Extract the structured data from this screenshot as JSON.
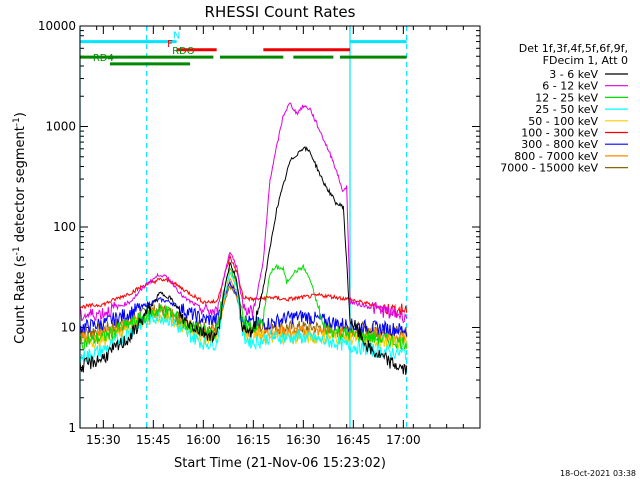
{
  "chart_data": {
    "type": "line",
    "title": "RHESSI Count Rates",
    "xlabel": "Start Time (21-Nov-06 15:23:02)",
    "ylabel_pre": "Count Rate (s",
    "ylabel_sup": "-1",
    "ylabel_mid": " detector segment",
    "ylabel_post": ")",
    "yscale": "log",
    "ylim": [
      1,
      10000
    ],
    "xlim_min": [
      23,
      143
    ],
    "x_unit": "minutes after 15:00",
    "yticks": [
      {
        "v": 1,
        "label": "1"
      },
      {
        "v": 10,
        "label": "10"
      },
      {
        "v": 100,
        "label": "100"
      },
      {
        "v": 1000,
        "label": "1000"
      },
      {
        "v": 10000,
        "label": "10000"
      }
    ],
    "xticks": [
      {
        "t": 30,
        "label": "15:30"
      },
      {
        "t": 45,
        "label": "15:45"
      },
      {
        "t": 60,
        "label": "16:00"
      },
      {
        "t": 75,
        "label": "16:15"
      },
      {
        "t": 90,
        "label": "16:30"
      },
      {
        "t": 105,
        "label": "16:45"
      },
      {
        "t": 120,
        "label": "17:00"
      }
    ],
    "legend_header": [
      "Det 1f,3f,4f,5f,6f,9f,",
      "FDecim 1, Att 0"
    ],
    "series": [
      {
        "name": "3 - 6 keV",
        "color": "#000000",
        "points": [
          [
            23,
            4
          ],
          [
            30,
            5
          ],
          [
            38,
            8
          ],
          [
            43,
            14
          ],
          [
            47,
            22
          ],
          [
            50,
            20
          ],
          [
            54,
            12
          ],
          [
            60,
            9
          ],
          [
            64,
            8
          ],
          [
            66,
            20
          ],
          [
            68,
            45
          ],
          [
            70,
            30
          ],
          [
            72,
            9
          ],
          [
            75,
            9
          ],
          [
            78,
            25
          ],
          [
            82,
            150
          ],
          [
            86,
            450
          ],
          [
            90,
            620
          ],
          [
            92,
            560
          ],
          [
            96,
            280
          ],
          [
            100,
            170
          ],
          [
            102,
            160
          ],
          [
            104,
            12
          ],
          [
            110,
            6
          ],
          [
            116,
            4.5
          ],
          [
            121,
            3.7
          ]
        ]
      },
      {
        "name": "6 - 12 keV",
        "color": "#e000e0",
        "points": [
          [
            23,
            13
          ],
          [
            30,
            14
          ],
          [
            38,
            18
          ],
          [
            43,
            27
          ],
          [
            47,
            34
          ],
          [
            50,
            30
          ],
          [
            54,
            20
          ],
          [
            60,
            15
          ],
          [
            64,
            14
          ],
          [
            66,
            30
          ],
          [
            68,
            58
          ],
          [
            70,
            40
          ],
          [
            72,
            16
          ],
          [
            75,
            14
          ],
          [
            78,
            45
          ],
          [
            80,
            300
          ],
          [
            84,
            1300
          ],
          [
            86,
            1700
          ],
          [
            88,
            1350
          ],
          [
            90,
            1600
          ],
          [
            92,
            1500
          ],
          [
            95,
            900
          ],
          [
            99,
            450
          ],
          [
            102,
            220
          ],
          [
            103,
            260
          ],
          [
            104,
            18
          ],
          [
            110,
            16
          ],
          [
            116,
            14
          ],
          [
            121,
            13
          ]
        ]
      },
      {
        "name": "12 - 25 keV",
        "color": "#00dd00",
        "points": [
          [
            23,
            7
          ],
          [
            30,
            8
          ],
          [
            38,
            11
          ],
          [
            43,
            13
          ],
          [
            47,
            15
          ],
          [
            50,
            14
          ],
          [
            54,
            11
          ],
          [
            60,
            9
          ],
          [
            64,
            9
          ],
          [
            66,
            22
          ],
          [
            68,
            40
          ],
          [
            70,
            28
          ],
          [
            72,
            11
          ],
          [
            75,
            10
          ],
          [
            78,
            12
          ],
          [
            80,
            35
          ],
          [
            82,
            40
          ],
          [
            84,
            38
          ],
          [
            85,
            28
          ],
          [
            87,
            35
          ],
          [
            90,
            40
          ],
          [
            92,
            30
          ],
          [
            94,
            18
          ],
          [
            96,
            10
          ],
          [
            100,
            9
          ],
          [
            110,
            8
          ],
          [
            121,
            7
          ]
        ]
      },
      {
        "name": "25 - 50 keV",
        "color": "#00ffff",
        "points": [
          [
            23,
            5
          ],
          [
            30,
            6
          ],
          [
            38,
            9
          ],
          [
            43,
            12
          ],
          [
            47,
            13
          ],
          [
            50,
            12
          ],
          [
            54,
            9
          ],
          [
            60,
            7
          ],
          [
            64,
            7
          ],
          [
            66,
            18
          ],
          [
            68,
            36
          ],
          [
            70,
            25
          ],
          [
            72,
            8
          ],
          [
            75,
            7
          ],
          [
            80,
            8
          ],
          [
            85,
            8
          ],
          [
            90,
            8
          ],
          [
            95,
            7.5
          ],
          [
            100,
            7
          ],
          [
            110,
            6
          ],
          [
            121,
            5.5
          ]
        ]
      },
      {
        "name": "50 - 100 keV",
        "color": "#ffcc00",
        "points": [
          [
            23,
            7
          ],
          [
            30,
            7.5
          ],
          [
            38,
            10
          ],
          [
            43,
            12
          ],
          [
            47,
            13
          ],
          [
            50,
            12
          ],
          [
            54,
            10
          ],
          [
            60,
            8
          ],
          [
            64,
            8
          ],
          [
            66,
            18
          ],
          [
            68,
            36
          ],
          [
            70,
            26
          ],
          [
            72,
            9
          ],
          [
            75,
            8
          ],
          [
            85,
            8
          ],
          [
            100,
            8
          ],
          [
            110,
            7.5
          ],
          [
            121,
            7
          ]
        ]
      },
      {
        "name": "100 - 300 keV",
        "color": "#ff0000",
        "points": [
          [
            23,
            16
          ],
          [
            30,
            17
          ],
          [
            38,
            22
          ],
          [
            43,
            27
          ],
          [
            47,
            30
          ],
          [
            50,
            29
          ],
          [
            54,
            24
          ],
          [
            60,
            18
          ],
          [
            64,
            18
          ],
          [
            66,
            30
          ],
          [
            68,
            50
          ],
          [
            70,
            36
          ],
          [
            72,
            20
          ],
          [
            75,
            19
          ],
          [
            80,
            20
          ],
          [
            85,
            19
          ],
          [
            90,
            20
          ],
          [
            95,
            21
          ],
          [
            100,
            20
          ],
          [
            104,
            19
          ],
          [
            110,
            17
          ],
          [
            116,
            15
          ],
          [
            121,
            15
          ]
        ]
      },
      {
        "name": "300 - 800 keV",
        "color": "#0000ff",
        "points": [
          [
            23,
            10
          ],
          [
            30,
            11
          ],
          [
            38,
            14
          ],
          [
            43,
            17
          ],
          [
            47,
            19
          ],
          [
            50,
            18
          ],
          [
            54,
            15
          ],
          [
            60,
            12
          ],
          [
            64,
            12
          ],
          [
            66,
            20
          ],
          [
            68,
            28
          ],
          [
            70,
            22
          ],
          [
            72,
            12
          ],
          [
            75,
            11
          ],
          [
            80,
            11
          ],
          [
            85,
            12.5
          ],
          [
            90,
            13
          ],
          [
            95,
            12
          ],
          [
            100,
            11
          ],
          [
            110,
            10
          ],
          [
            121,
            9.5
          ]
        ]
      },
      {
        "name": "800 - 7000 keV",
        "color": "#ff8800",
        "points": [
          [
            23,
            8
          ],
          [
            30,
            8.5
          ],
          [
            38,
            11
          ],
          [
            43,
            13
          ],
          [
            47,
            14
          ],
          [
            50,
            13
          ],
          [
            54,
            11
          ],
          [
            60,
            9
          ],
          [
            64,
            9
          ],
          [
            66,
            17
          ],
          [
            68,
            30
          ],
          [
            70,
            22
          ],
          [
            72,
            9.5
          ],
          [
            75,
            9
          ],
          [
            85,
            9
          ],
          [
            95,
            9
          ],
          [
            100,
            9
          ],
          [
            110,
            8.5
          ],
          [
            121,
            8
          ]
        ]
      },
      {
        "name": "7000 - 15000 keV",
        "color": "#886600",
        "points": [
          [
            23,
            9
          ],
          [
            30,
            9.5
          ],
          [
            38,
            12
          ],
          [
            43,
            14
          ],
          [
            47,
            15
          ],
          [
            50,
            14
          ],
          [
            54,
            12
          ],
          [
            60,
            10
          ],
          [
            64,
            10
          ],
          [
            66,
            16
          ],
          [
            68,
            26
          ],
          [
            70,
            20
          ],
          [
            72,
            10
          ],
          [
            75,
            10
          ],
          [
            85,
            10
          ],
          [
            95,
            10
          ],
          [
            100,
            10
          ],
          [
            110,
            9.5
          ],
          [
            121,
            9
          ]
        ]
      }
    ],
    "bands": [
      {
        "color": "#00e5ff",
        "v": 7000,
        "segments": [
          [
            23,
            52
          ],
          [
            104,
            121
          ]
        ],
        "labels": [
          {
            "t": 52,
            "text": "N"
          }
        ]
      },
      {
        "color": "#ee0000",
        "v": 5800,
        "segments": [
          [
            52,
            64
          ],
          [
            78,
            104
          ]
        ],
        "labels": [
          {
            "t": 50,
            "text": "F"
          }
        ]
      },
      {
        "color": "#008800",
        "v": 4900,
        "segments": [
          [
            23,
            63
          ],
          [
            65,
            84
          ],
          [
            87,
            99
          ],
          [
            101,
            121
          ]
        ],
        "labels": [
          {
            "t": 54,
            "text": "RDO"
          }
        ]
      },
      {
        "color": "#008800",
        "v": 4200,
        "segments": [
          [
            32,
            56
          ]
        ],
        "labels": [
          {
            "t": 30,
            "text": "RD4"
          }
        ]
      }
    ],
    "vlines": [
      {
        "t": 23,
        "color": "#00e5ff",
        "style": "solid"
      },
      {
        "t": 43,
        "color": "#00e5ff",
        "style": "dashed"
      },
      {
        "t": 104,
        "color": "#00e5ff",
        "style": "solid"
      },
      {
        "t": 121,
        "color": "#00e5ff",
        "style": "dashed"
      }
    ],
    "date_stamp": "18-Oct-2021 03:38"
  }
}
